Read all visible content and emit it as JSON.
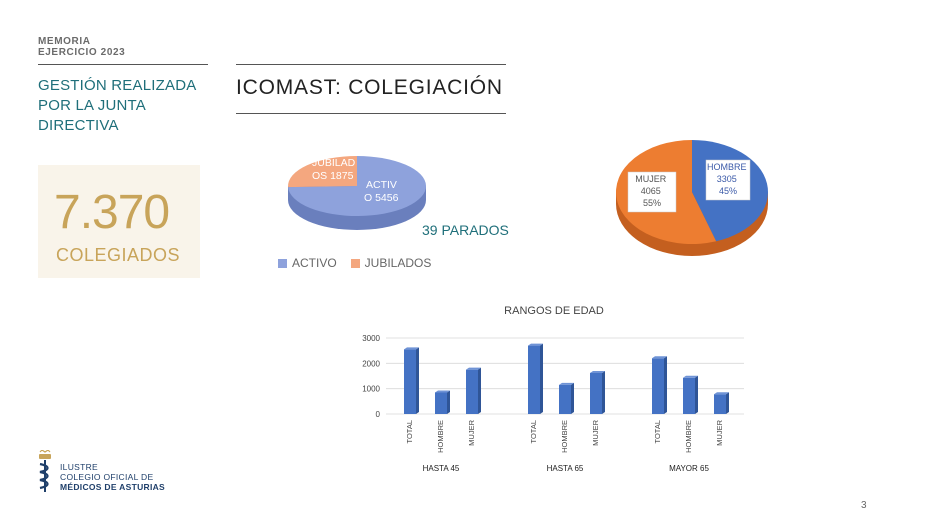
{
  "header": {
    "line1": "MEMORIA",
    "line2": "EJERCICIO 2023"
  },
  "section": {
    "line1": "GESTIÓN REALIZADA",
    "line2": "POR LA JUNTA",
    "line3": "DIRECTIVA"
  },
  "stat": {
    "value": "7.370",
    "label": "COLEGIADOS"
  },
  "title": "ICOMAST: COLEGIACIÓN",
  "parados": "39 PARADOS",
  "footer": {
    "line1": "ILUSTRE",
    "line2": "COLEGIO OFICIAL DE",
    "line3": "MÉDICOS DE ASTURIAS"
  },
  "page_number": "3",
  "colors": {
    "teal": "#1f6f7a",
    "gold": "#c8a45a",
    "blue": "#4472c4",
    "orange": "#ed7d31",
    "lavender": "#8ea2dc",
    "salmon": "#f4a77f"
  },
  "chart_data": [
    {
      "type": "pie",
      "slices": [
        {
          "label": "ACTIV O 5456",
          "name": "ACTIVO",
          "value": 5456,
          "color": "#8ea2dc"
        },
        {
          "label": "JUBILAD OS 1875",
          "name": "JUBILADOS",
          "value": 1875,
          "color": "#f4a77f"
        }
      ],
      "legend": [
        "ACTIVO",
        "JUBILADOS"
      ],
      "legend_position": "bottom"
    },
    {
      "type": "pie",
      "slices": [
        {
          "name": "HOMBRE",
          "value": 3305,
          "percent": "45%",
          "color": "#4472c4"
        },
        {
          "name": "MUJER",
          "value": 4065,
          "percent": "55%",
          "color": "#ed7d31"
        }
      ]
    },
    {
      "type": "bar",
      "title": "RANGOS DE EDAD",
      "ylim": [
        0,
        3000
      ],
      "yticks": [
        "0",
        "1000",
        "2000",
        "3000"
      ],
      "groups": [
        {
          "label": "HASTA 45",
          "categories": [
            "TOTAL",
            "HOMBRE",
            "MUJER"
          ],
          "values": [
            2550,
            850,
            1750
          ]
        },
        {
          "label": "HASTA 65",
          "categories": [
            "TOTAL",
            "HOMBRE",
            "MUJER"
          ],
          "values": [
            2700,
            1150,
            1620
          ]
        },
        {
          "label": "MAYOR 65",
          "categories": [
            "TOTAL",
            "HOMBRE",
            "MUJER"
          ],
          "values": [
            2200,
            1430,
            780
          ]
        }
      ],
      "grid": true,
      "color": "#4472c4"
    }
  ]
}
